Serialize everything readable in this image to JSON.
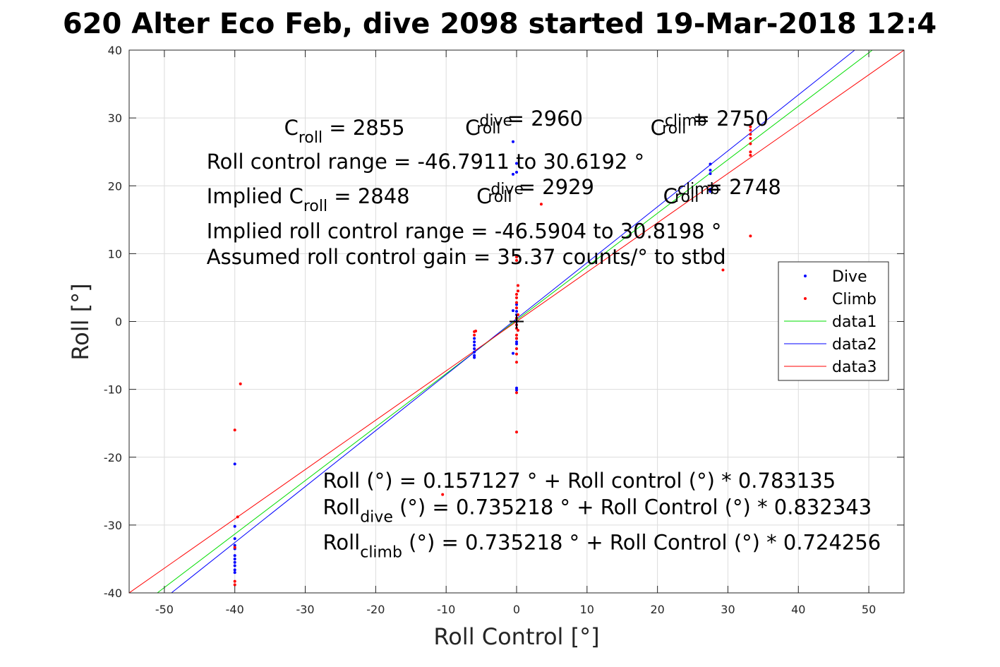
{
  "chart_data": {
    "type": "scatter",
    "title": "620 Alter Eco Feb, dive 2098 started 19-Mar-2018 12:4",
    "xlabel": "Roll Control [°]",
    "ylabel": "Roll [°]",
    "xlim": [
      -55,
      55
    ],
    "ylim": [
      -40,
      40
    ],
    "xticks": [
      -50,
      -40,
      -30,
      -20,
      -10,
      0,
      10,
      20,
      30,
      40,
      50
    ],
    "yticks": [
      -40,
      -30,
      -20,
      -10,
      0,
      10,
      20,
      30,
      40
    ],
    "xtick_labels": [
      "-50",
      "-40",
      "-30",
      "-20",
      "-10",
      "0",
      "10",
      "20",
      "30",
      "40",
      "50"
    ],
    "ytick_labels": [
      "-40",
      "-30",
      "-20",
      "-10",
      "0",
      "10",
      "20",
      "30",
      "40"
    ],
    "grid": true,
    "legend_position": "right",
    "series": [
      {
        "name": "Dive",
        "kind": "points",
        "color": "#0000ff",
        "points": [
          [
            -40,
            -21
          ],
          [
            -40,
            -30.2
          ],
          [
            -40,
            -32
          ],
          [
            -40,
            -33
          ],
          [
            -40,
            -33.5
          ],
          [
            -40,
            -34.5
          ],
          [
            -40,
            -35
          ],
          [
            -40,
            -35.5
          ],
          [
            -40,
            -36
          ],
          [
            -40,
            -36.6
          ],
          [
            -40,
            -37
          ],
          [
            -6,
            -2.5
          ],
          [
            -6,
            -3
          ],
          [
            -6,
            -3.5
          ],
          [
            -6,
            -4
          ],
          [
            -6,
            -4.5
          ],
          [
            -6,
            -5
          ],
          [
            -6,
            -5.3
          ],
          [
            -0.5,
            26.5
          ],
          [
            -0.5,
            21.7
          ],
          [
            0,
            23.3
          ],
          [
            0,
            22
          ],
          [
            -0.5,
            1.6
          ],
          [
            0,
            1
          ],
          [
            0,
            0.5
          ],
          [
            0,
            0
          ],
          [
            0,
            -0.5
          ],
          [
            0,
            -1
          ],
          [
            0,
            1.5
          ],
          [
            0,
            -2.5
          ],
          [
            0,
            -3
          ],
          [
            0,
            -3.3
          ],
          [
            0,
            2.5
          ],
          [
            -0.5,
            -4.7
          ],
          [
            0,
            -9.8
          ],
          [
            0,
            -10.1
          ],
          [
            27.5,
            23.2
          ],
          [
            27.5,
            22.3
          ],
          [
            27.5,
            21.8
          ],
          [
            27.5,
            19.5
          ],
          [
            27.5,
            19.2
          ]
        ]
      },
      {
        "name": "Climb",
        "kind": "points",
        "color": "#ff0000",
        "points": [
          [
            -40,
            -16
          ],
          [
            -39.2,
            -9.2
          ],
          [
            -39.6,
            -28.8
          ],
          [
            -40,
            -38.3
          ],
          [
            -40,
            -38.8
          ],
          [
            -40,
            -33.3
          ],
          [
            -6,
            -1.5
          ],
          [
            -6,
            -2
          ],
          [
            -5.8,
            -1.4
          ],
          [
            0,
            9.5
          ],
          [
            0,
            9
          ],
          [
            0.2,
            5.3
          ],
          [
            0.2,
            4.5
          ],
          [
            0,
            4
          ],
          [
            0,
            3.5
          ],
          [
            0,
            2.8
          ],
          [
            0,
            2
          ],
          [
            0.2,
            1
          ],
          [
            0,
            0.5
          ],
          [
            0,
            -0.5
          ],
          [
            0,
            -1
          ],
          [
            0.2,
            -1.3
          ],
          [
            0,
            -2
          ],
          [
            0,
            -2.5
          ],
          [
            0,
            -4
          ],
          [
            0,
            -4.8
          ],
          [
            0,
            -6
          ],
          [
            0,
            -10.5
          ],
          [
            0,
            -16.3
          ],
          [
            -10.5,
            -25.5
          ],
          [
            3.5,
            17.3
          ],
          [
            29.3,
            7.6
          ],
          [
            33.2,
            12.6
          ],
          [
            33.2,
            28.7
          ],
          [
            33.2,
            28.2
          ],
          [
            33.2,
            27.6
          ],
          [
            33.2,
            27
          ],
          [
            33.2,
            26.2
          ],
          [
            33.2,
            25
          ],
          [
            33.2,
            24.5
          ]
        ]
      },
      {
        "name": "data1",
        "kind": "line",
        "color": "#00dd00",
        "points": [
          [
            -51,
            -40
          ],
          [
            50.5,
            40
          ]
        ]
      },
      {
        "name": "data2",
        "kind": "line",
        "color": "#0000ff",
        "points": [
          [
            -49,
            -40
          ],
          [
            48,
            40
          ]
        ]
      },
      {
        "name": "data3",
        "kind": "line",
        "color": "#ff0000",
        "points": [
          [
            -55,
            -40
          ],
          [
            55,
            40
          ]
        ]
      }
    ],
    "origin_marker": {
      "name": "origin-plus-marker",
      "x": 0,
      "y": 0,
      "color": "#000000"
    },
    "annotations": [
      {
        "name": "c-roll-annotation",
        "parts": [
          [
            "C",
            ""
          ],
          [
            "roll",
            "sub"
          ],
          [
            " = 2855",
            ""
          ]
        ],
        "anchor": [
          -33,
          27.5
        ]
      },
      {
        "name": "c-roll-dive-annotation",
        "parts": [
          [
            "C",
            ""
          ],
          [
            "dive",
            "super-stack"
          ],
          [
            "roll",
            "sub"
          ],
          [
            " = 2960",
            ""
          ]
        ],
        "anchor": [
          -7.3,
          27.5
        ]
      },
      {
        "name": "c-roll-climb-annotation",
        "parts": [
          [
            "C",
            ""
          ],
          [
            "climb",
            "super-stack"
          ],
          [
            "roll",
            "sub"
          ],
          [
            " = 2750",
            ""
          ]
        ],
        "anchor": [
          19,
          27.5
        ]
      },
      {
        "name": "roll-control-range-annotation",
        "parts": [
          [
            "Roll control range = -46.7911 to 30.6192 °",
            ""
          ]
        ],
        "anchor": [
          -44,
          22.5
        ]
      },
      {
        "name": "implied-c-roll-annotation",
        "parts": [
          [
            "Implied C",
            ""
          ],
          [
            "roll",
            "sub"
          ],
          [
            " = 2848",
            ""
          ]
        ],
        "anchor": [
          -44,
          17.4
        ]
      },
      {
        "name": "implied-c-roll-dive-annotation",
        "parts": [
          [
            "C",
            ""
          ],
          [
            "dive",
            "super-stack"
          ],
          [
            "roll",
            "sub"
          ],
          [
            " = 2929",
            ""
          ]
        ],
        "anchor": [
          -5.7,
          17.4
        ]
      },
      {
        "name": "implied-c-roll-climb-annotation",
        "parts": [
          [
            "C",
            ""
          ],
          [
            "climb",
            "super-stack"
          ],
          [
            "roll",
            "sub"
          ],
          [
            " = 2748",
            ""
          ]
        ],
        "anchor": [
          20.8,
          17.4
        ]
      },
      {
        "name": "implied-roll-control-range-annotation",
        "parts": [
          [
            "Implied roll control range = -46.5904 to 30.8198 °",
            ""
          ]
        ],
        "anchor": [
          -44,
          12.3
        ]
      },
      {
        "name": "assumed-gain-annotation",
        "parts": [
          [
            "Assumed roll control gain = 35.37 counts/° to stbd",
            ""
          ]
        ],
        "anchor": [
          -44,
          8.5
        ]
      },
      {
        "name": "roll-fit-annotation",
        "parts": [
          [
            "Roll (°) = 0.157127 ° + Roll control (°) * 0.783135",
            ""
          ]
        ],
        "anchor": [
          -27.5,
          -24.5
        ]
      },
      {
        "name": "roll-dive-fit-annotation",
        "parts": [
          [
            "Roll",
            ""
          ],
          [
            "dive",
            "sub"
          ],
          [
            " (°) = 0.735218 ° + Roll Control (°) * 0.832343",
            ""
          ]
        ],
        "anchor": [
          -27.5,
          -28.4
        ]
      },
      {
        "name": "roll-climb-fit-annotation",
        "parts": [
          [
            "Roll",
            ""
          ],
          [
            "climb",
            "sub"
          ],
          [
            " (°) = 0.735218 ° + Roll Control (°) * 0.724256",
            ""
          ]
        ],
        "anchor": [
          -27.5,
          -33.6
        ]
      }
    ]
  }
}
